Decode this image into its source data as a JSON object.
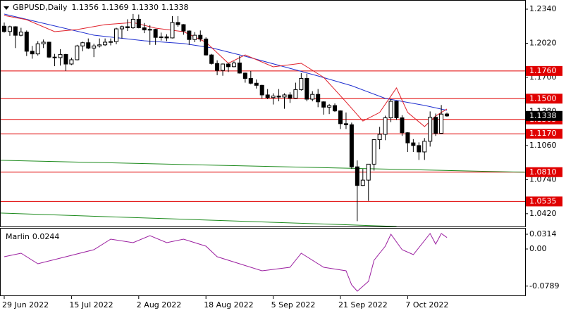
{
  "chart_data": {
    "type": "candlestick",
    "title": "GBPUSD,Daily",
    "header_values": [
      "1.1356",
      "1.1369",
      "1.1330",
      "1.1338"
    ],
    "categories": [
      "29 Jun 2022",
      null,
      null,
      null,
      null,
      null,
      null,
      null,
      null,
      null,
      null,
      null,
      "15 Jul 2022",
      null,
      null,
      null,
      null,
      null,
      null,
      null,
      null,
      null,
      null,
      null,
      "2 Aug 2022",
      null,
      null,
      null,
      null,
      null,
      null,
      null,
      null,
      null,
      null,
      null,
      "18 Aug 2022",
      null,
      null,
      null,
      null,
      null,
      null,
      null,
      null,
      null,
      null,
      null,
      "5 Sep 2022",
      null,
      null,
      null,
      null,
      null,
      null,
      null,
      null,
      null,
      null,
      null,
      "21 Sep 2022",
      null,
      null,
      null,
      null,
      null,
      null,
      null,
      null,
      null,
      null,
      null,
      "7 Oct 2022",
      null,
      null,
      null,
      null,
      null,
      null,
      null
    ],
    "open": [
      1.218,
      1.213,
      1.2175,
      1.2095,
      1.2125,
      1.1945,
      1.192,
      1.2015,
      1.203,
      1.189,
      1.1885,
      1.1915,
      1.1825,
      1.1865,
      1.1995,
      1.2025,
      1.1975,
      1.1995,
      1.2005,
      1.203,
      1.2035,
      1.2155,
      1.2175,
      1.2165,
      1.2245,
      1.2165,
      1.2145,
      1.215,
      1.2075,
      1.208,
      1.207,
      1.2215,
      1.2195,
      1.2135,
      1.2055,
      1.2095,
      1.206,
      1.191,
      1.183,
      1.1765,
      1.1825,
      1.18,
      1.1835,
      1.174,
      1.169,
      1.1645,
      1.1625,
      1.1535,
      1.151,
      1.1525,
      1.1515,
      1.1535,
      1.1505,
      1.1585,
      1.169,
      1.1495,
      1.154,
      1.147,
      1.142,
      1.1435,
      1.1385,
      1.1265,
      1.1255,
      1.086,
      1.0685,
      1.0735,
      1.0885,
      1.1115,
      1.1165,
      1.132,
      1.1475,
      1.132,
      1.118,
      1.1085,
      1.106,
      1.1,
      1.11,
      1.1325,
      1.1175,
      1.1356
    ],
    "high": [
      1.2215,
      1.2185,
      1.218,
      1.2165,
      1.214,
      1.1995,
      1.204,
      1.2055,
      1.2035,
      1.192,
      1.1965,
      1.192,
      1.1885,
      1.2005,
      1.2035,
      1.2065,
      1.2015,
      1.2065,
      1.2065,
      1.2065,
      1.2165,
      1.2185,
      1.2245,
      1.2295,
      1.229,
      1.221,
      1.219,
      1.2155,
      1.212,
      1.2105,
      1.2275,
      1.2275,
      1.22,
      1.214,
      1.2125,
      1.214,
      1.2075,
      1.192,
      1.186,
      1.183,
      1.1835,
      1.185,
      1.19,
      1.1745,
      1.176,
      1.168,
      1.163,
      1.159,
      1.155,
      1.159,
      1.155,
      1.156,
      1.165,
      1.174,
      1.1735,
      1.157,
      1.159,
      1.1475,
      1.145,
      1.1455,
      1.139,
      1.137,
      1.1275,
      1.092,
      1.084,
      1.088,
      1.112,
      1.1235,
      1.134,
      1.1495,
      1.148,
      1.1345,
      1.1185,
      1.112,
      1.109,
      1.113,
      1.138,
      1.136,
      1.144,
      1.1369
    ],
    "low": [
      1.212,
      1.209,
      1.1975,
      1.2085,
      1.19,
      1.1875,
      1.1905,
      1.1975,
      1.188,
      1.1805,
      1.181,
      1.176,
      1.1815,
      1.186,
      1.1945,
      1.1965,
      1.189,
      1.198,
      1.1995,
      1.2,
      1.201,
      1.2065,
      1.2135,
      1.2155,
      1.216,
      1.2115,
      1.2005,
      1.2005,
      1.2045,
      1.204,
      1.2065,
      1.2175,
      1.21,
      1.2005,
      1.203,
      1.2035,
      1.1905,
      1.182,
      1.172,
      1.1715,
      1.175,
      1.1795,
      1.1735,
      1.165,
      1.1635,
      1.1595,
      1.15,
      1.1495,
      1.1445,
      1.1475,
      1.1405,
      1.146,
      1.15,
      1.1575,
      1.1475,
      1.1475,
      1.142,
      1.135,
      1.1355,
      1.1375,
      1.1215,
      1.1215,
      1.084,
      1.035,
      1.068,
      1.054,
      1.0825,
      1.1025,
      1.111,
      1.128,
      1.13,
      1.115,
      1.1,
      1.1,
      1.0925,
      1.0925,
      1.105,
      1.115,
      1.117,
      1.133
    ],
    "close": [
      1.213,
      1.2175,
      1.2095,
      1.2125,
      1.1945,
      1.192,
      1.2015,
      1.203,
      1.189,
      1.1885,
      1.1915,
      1.1825,
      1.1865,
      1.1995,
      1.2025,
      1.1975,
      1.1995,
      1.2005,
      1.203,
      1.2035,
      1.2155,
      1.2175,
      1.2165,
      1.2245,
      1.2165,
      1.2145,
      1.215,
      1.2075,
      1.208,
      1.207,
      1.2215,
      1.2195,
      1.2135,
      1.2055,
      1.2095,
      1.206,
      1.191,
      1.183,
      1.1765,
      1.1825,
      1.18,
      1.1835,
      1.174,
      1.169,
      1.1645,
      1.1625,
      1.1535,
      1.151,
      1.1525,
      1.1515,
      1.1535,
      1.1505,
      1.1585,
      1.169,
      1.1495,
      1.154,
      1.147,
      1.142,
      1.1435,
      1.1385,
      1.1265,
      1.1255,
      1.086,
      1.0685,
      1.0735,
      1.0885,
      1.1115,
      1.1165,
      1.132,
      1.1475,
      1.132,
      1.118,
      1.1085,
      1.106,
      1.1,
      1.11,
      1.1325,
      1.1175,
      1.1355,
      1.1338
    ],
    "overlays": [
      {
        "color": "#1f2fd0",
        "x": [
          0,
          8,
          16,
          25,
          32,
          37,
          43,
          50,
          56,
          62,
          68,
          75,
          79
        ],
        "values": [
          1.2294,
          1.2195,
          1.2096,
          1.2043,
          1.2017,
          1.1977,
          1.1898,
          1.1799,
          1.1713,
          1.1621,
          1.1502,
          1.1436,
          1.139
        ]
      },
      {
        "color": "#e0202a",
        "x": [
          0,
          4,
          9,
          13,
          18,
          23,
          27,
          32,
          36,
          40,
          43,
          48,
          53,
          57,
          61,
          64,
          67,
          70,
          72,
          75,
          77,
          79
        ],
        "values": [
          1.2281,
          1.2241,
          1.2129,
          1.2149,
          1.2195,
          1.2215,
          1.2162,
          1.2129,
          1.203,
          1.1832,
          1.1911,
          1.1799,
          1.1832,
          1.17,
          1.1469,
          1.129,
          1.137,
          1.1601,
          1.137,
          1.1238,
          1.1337,
          1.1403
        ]
      },
      {
        "color": "#1c8a1c",
        "x": [
          -0.75,
          92.9
        ],
        "values": [
          1.0921,
          1.0809
        ]
      },
      {
        "color": "#1c8a1c",
        "x": [
          -0.75,
          70
        ],
        "values": [
          1.0426,
          1.03
        ]
      }
    ],
    "levels": [
      {
        "value": 1.176,
        "label": "1.1760"
      },
      {
        "value": 1.15,
        "label": "1.1500"
      },
      1.1305,
      {
        "value": 1.117,
        "label": "1.1170"
      },
      {
        "value": 1.081,
        "label": "1.0810"
      },
      1.0535
    ],
    "level_color": "#e00000",
    "ylim": [
      1.03,
      1.2426
    ],
    "yticks": [
      {
        "value": 1.234,
        "label": "1.2340"
      },
      {
        "value": 1.202,
        "label": "1.2020"
      },
      {
        "value": 1.17,
        "label": "1.1700"
      },
      {
        "value": 1.138,
        "label": "1.1380"
      },
      {
        "value": 1.106,
        "label": "1.1060"
      },
      {
        "value": 1.074,
        "label": "1.0740"
      },
      {
        "value": 1.042,
        "label": "1.0420"
      }
    ],
    "indicator": {
      "name": "Marlin",
      "color": "#9b1fa0",
      "x": [
        0,
        3,
        6,
        11,
        16,
        19,
        23,
        26,
        29,
        32,
        36,
        38,
        42,
        46,
        51,
        53,
        57,
        61,
        62,
        63,
        65,
        66,
        68,
        69,
        71,
        73,
        76,
        77,
        78,
        79
      ],
      "values": [
        -0.0164,
        -0.009,
        -0.0314,
        -0.0164,
        -0.0015,
        0.0209,
        0.0135,
        0.0284,
        0.0135,
        0.0209,
        0.006,
        -0.0164,
        -0.0314,
        -0.0463,
        -0.0389,
        -0.009,
        -0.0389,
        -0.0463,
        -0.0762,
        -0.0897,
        -0.0688,
        -0.0239,
        0.006,
        0.0314,
        -0.0015,
        -0.012,
        0.0329,
        0.0105,
        0.0329,
        0.0244
      ],
      "ylim": [
        -0.0987,
        0.0434
      ],
      "yticks": [
        0.0314,
        {
          "value": 0,
          "label": "0.00"
        },
        -0.0789
      ]
    }
  }
}
